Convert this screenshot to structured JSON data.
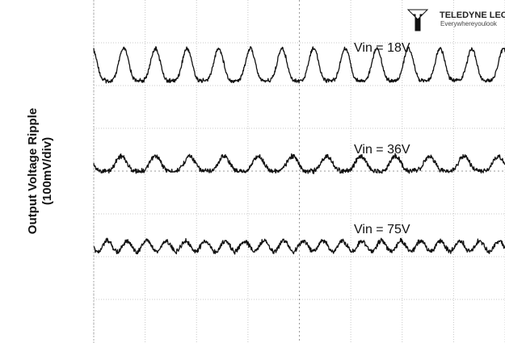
{
  "y_axis_title": "Output Voltage Ripple",
  "y_axis_unit": "(100mV/div)",
  "brand": {
    "name": "TELEDYNE LECROY",
    "tagline": "Everywhereyoulook"
  },
  "chart_data": {
    "type": "line",
    "ylabel": "Output Voltage Ripple (100mV/div)",
    "grid": true,
    "series": [
      {
        "name": "Vin = 18V",
        "cycles": 13,
        "peak_to_peak_div": 0.75
      },
      {
        "name": "Vin = 36V",
        "cycles": 12,
        "peak_to_peak_div": 0.35
      },
      {
        "name": "Vin = 75V",
        "cycles": 21,
        "peak_to_peak_div": 0.25
      }
    ]
  }
}
